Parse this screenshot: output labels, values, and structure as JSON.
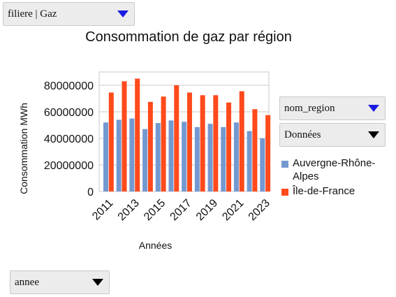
{
  "filters": {
    "filiere": "filiere | Gaz",
    "nom_region": "nom_region",
    "donnees": "Données",
    "annee": "annee"
  },
  "colors": {
    "series_1": "#7499d1",
    "series_2": "#ff4a1c",
    "grid": "#c8c8c8",
    "dropdown_arrow_accent": "#1a1ae0"
  },
  "chart_data": {
    "type": "bar",
    "title": "Consommation de gaz par région",
    "xlabel": "Années",
    "ylabel": "Consommation MWh",
    "categories": [
      "2011",
      "2012",
      "2013",
      "2014",
      "2015",
      "2016",
      "2017",
      "2018",
      "2019",
      "2020",
      "2021",
      "2022",
      "2023"
    ],
    "x_tick_labels": [
      "2011",
      "2013",
      "2015",
      "2017",
      "2019",
      "2021",
      "2023"
    ],
    "y_tick_labels": [
      "0",
      "20000000",
      "40000000",
      "60000000",
      "80000000"
    ],
    "ylim": [
      0,
      90000000
    ],
    "grid": true,
    "legend_position": "right",
    "series": [
      {
        "name": "Auvergne-Rhône-Alpes",
        "values": [
          52000000,
          54000000,
          55000000,
          47000000,
          51500000,
          53500000,
          52500000,
          48500000,
          51000000,
          48500000,
          52000000,
          45500000,
          40000000
        ]
      },
      {
        "name": "Île-de-France",
        "values": [
          74500000,
          83000000,
          85000000,
          67500000,
          71500000,
          80000000,
          74500000,
          72500000,
          72500000,
          67000000,
          75500000,
          62000000,
          57500000
        ]
      }
    ]
  }
}
